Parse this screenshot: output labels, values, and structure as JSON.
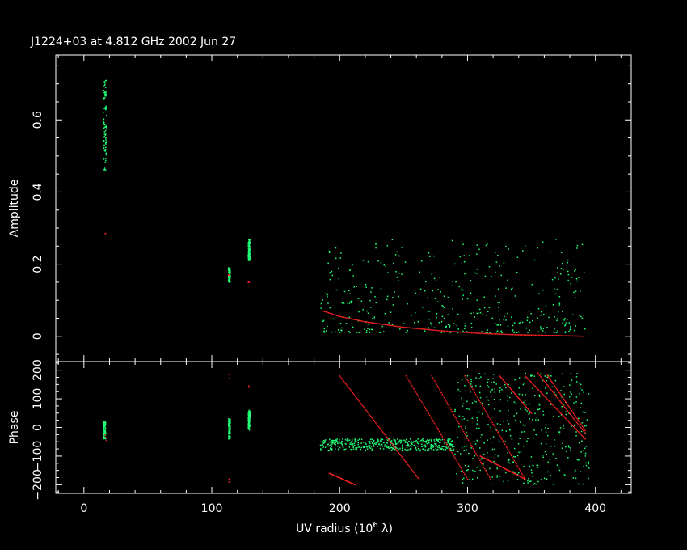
{
  "chart_data": {
    "type": "scatter",
    "title": "J1224+03 at 4.812 GHz 2002 Jun 27",
    "xlabel": "UV radius  (10^6 λ)",
    "xlim": [
      -22,
      428
    ],
    "x_ticks": [
      0,
      100,
      200,
      300,
      400
    ],
    "colors": {
      "data": "#22ff77",
      "model": "#ff2222"
    },
    "panels": [
      {
        "ylabel": "Amplitude",
        "ylim": [
          -0.07,
          0.78
        ],
        "y_ticks": [
          0,
          0.2,
          0.4,
          0.6
        ],
        "y_tick_labels": [
          "0",
          "0.2",
          "0.4",
          "0.6"
        ],
        "series": [
          {
            "role": "data",
            "clusters": [
              {
                "x": [
                  15,
                  18
                ],
                "y": [
                  0.46,
                  0.71
                ]
              },
              {
                "x": [
                  113,
                  114.5
                ],
                "y": [
                  0.15,
                  0.19
                ]
              },
              {
                "x": [
                  128.5,
                  130
                ],
                "y": [
                  0.21,
                  0.27
                ]
              },
              {
                "x": [
                  185,
                  392
                ],
                "y": [
                  0.01,
                  0.27
                ]
              }
            ]
          },
          {
            "role": "model",
            "x": [
              16.5,
              113.5,
              129,
              187,
              200,
              220,
              250,
              280,
              310,
              340,
              370,
              392
            ],
            "y": [
              0.285,
              0.17,
              0.15,
              0.07,
              0.055,
              0.04,
              0.025,
              0.015,
              0.008,
              0.004,
              0.002,
              0.0
            ]
          }
        ]
      },
      {
        "ylabel": "Phase",
        "ylim": [
          -230,
          230
        ],
        "y_ticks": [
          -200,
          -100,
          0,
          100,
          200
        ],
        "y_tick_labels": [
          "−200",
          "−100",
          "0",
          "100",
          "200"
        ],
        "series": [
          {
            "role": "data",
            "clusters": [
              {
                "x": [
                  15,
                  17
                ],
                "y": [
                  -40,
                  25
                ]
              },
              {
                "x": [
                  113,
                  114.5
                ],
                "y": [
                  -40,
                  30
                ]
              },
              {
                "x": [
                  128.5,
                  130
                ],
                "y": [
                  -10,
                  60
                ]
              },
              {
                "x": [
                  185,
                  290
                ],
                "y": [
                  -80,
                  -40
                ]
              },
              {
                "x": [
                  290,
                  395
                ],
                "y": [
                  -200,
                  190
                ]
              }
            ]
          },
          {
            "role": "model",
            "points": [
              [
                16.5,
                -25
              ],
              [
                17,
                -35
              ],
              [
                17.5,
                -45
              ],
              [
                113.5,
                170
              ],
              [
                113.5,
                185
              ],
              [
                113.5,
                -180
              ],
              [
                113.5,
                -190
              ],
              [
                129,
                140
              ],
              [
                129,
                145
              ]
            ],
            "wraps": [
              [
                200,
                180,
                262,
                -180
              ],
              [
                192,
                -160,
                212,
                -200
              ],
              [
                252,
                180,
                300,
                -180
              ],
              [
                272,
                180,
                318,
                -180
              ],
              [
                298,
                180,
                345,
                -180
              ],
              [
                310,
                -100,
                345,
                -180
              ],
              [
                325,
                180,
                350,
                50
              ],
              [
                345,
                180,
                392,
                -40
              ],
              [
                355,
                190,
                392,
                -20
              ],
              [
                362,
                185,
                392,
                -10
              ]
            ]
          }
        ]
      }
    ]
  }
}
